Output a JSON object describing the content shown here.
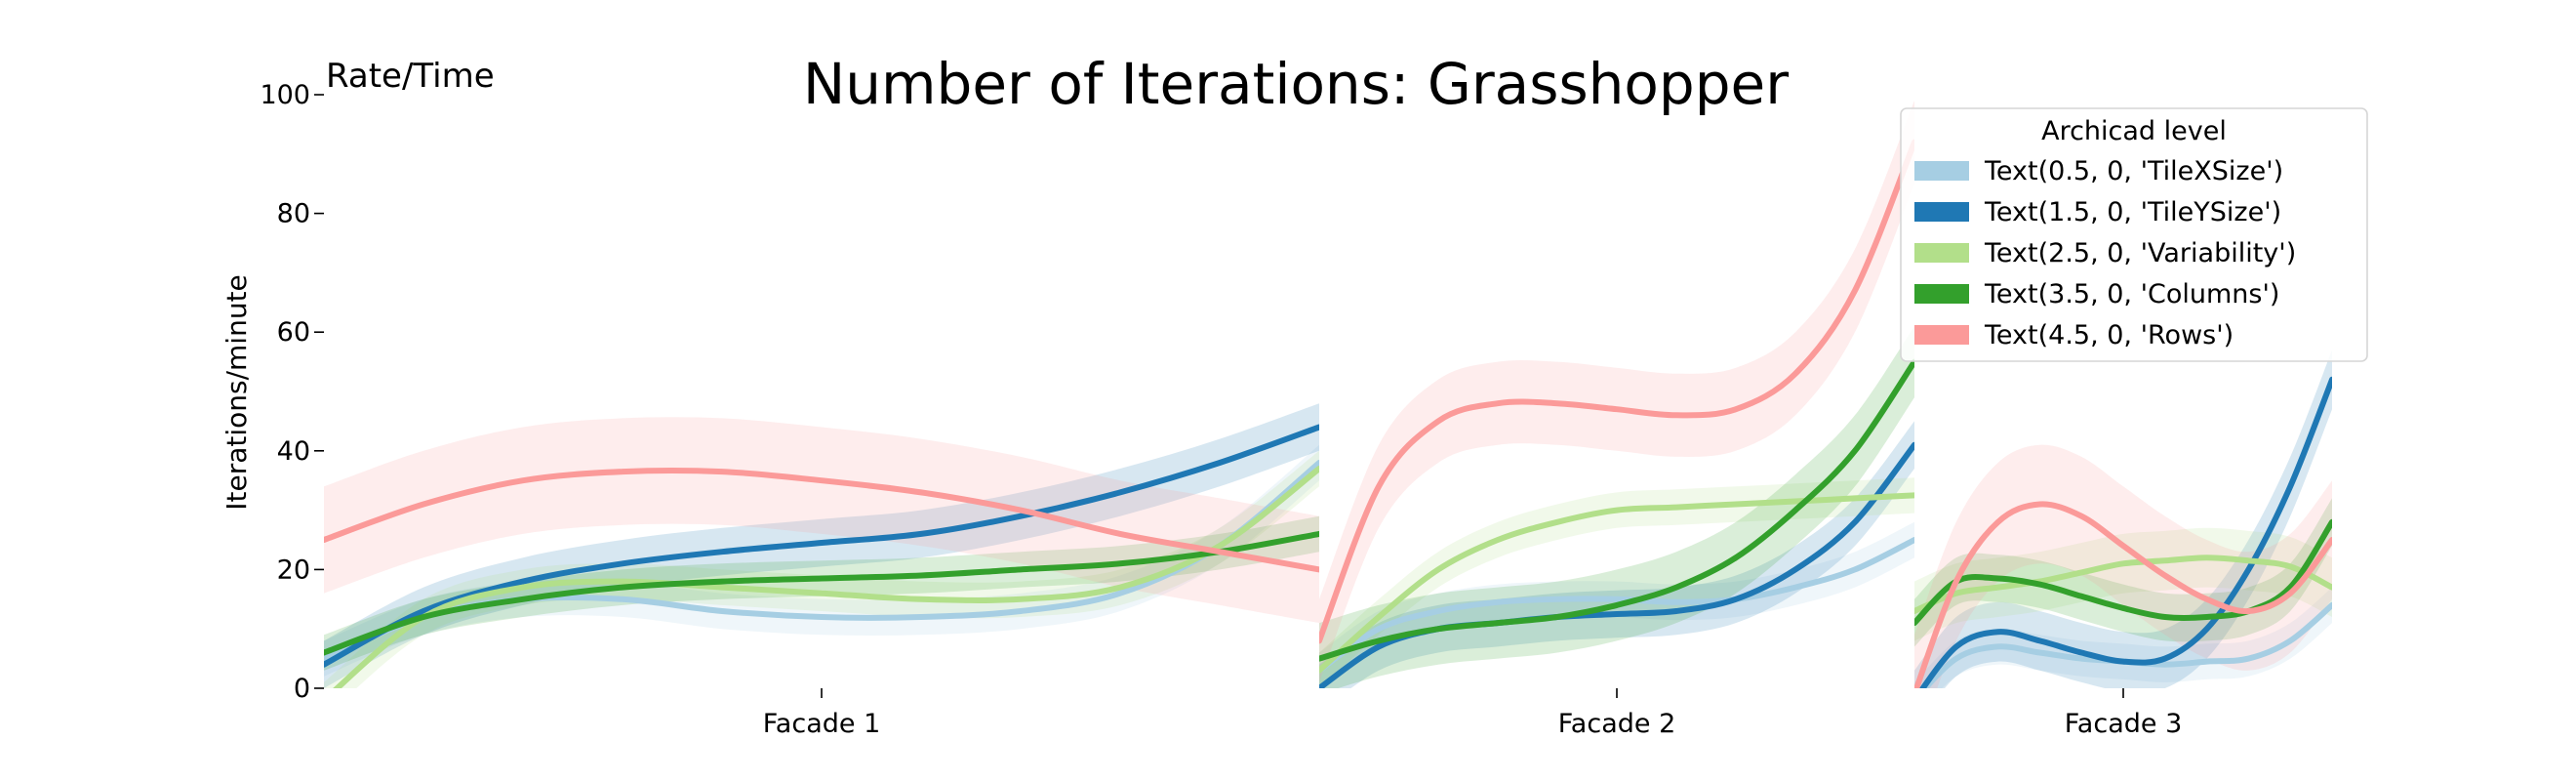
{
  "chart_data": {
    "type": "line",
    "title": "Number of Iterations: Grasshopper",
    "corner_label": "Rate/Time",
    "ylabel": "Iterations/minute",
    "xlabel": "",
    "ylim": [
      0,
      100
    ],
    "yticks": [
      0,
      20,
      40,
      60,
      80,
      100
    ],
    "grid": false,
    "legend": {
      "title": "Archicad level",
      "placement": "top-right"
    },
    "panels": [
      {
        "label": "Facade 1",
        "x": [
          0,
          0.1,
          0.2,
          0.3,
          0.4,
          0.5,
          0.6,
          0.7,
          0.8,
          0.9,
          1.0
        ],
        "series": [
          {
            "name": "Text(0.5, 0, 'TileXSize')",
            "color": "#a6cee3",
            "values": [
              5,
              12,
              15,
              15,
              13,
              12,
              12,
              13,
              16,
              24,
              38
            ],
            "band": 3
          },
          {
            "name": "Text(1.5, 0, 'TileYSize')",
            "color": "#1f78b4",
            "values": [
              4,
              13,
              18,
              21,
              23,
              24.5,
              26,
              29,
              33,
              38,
              44
            ],
            "band": 4
          },
          {
            "name": "Text(2.5, 0, 'Variability')",
            "color": "#b2df8a",
            "values": [
              -2,
              12,
              17,
              18,
              17,
              16,
              15,
              15,
              17,
              24,
              37
            ],
            "band": 3
          },
          {
            "name": "Text(3.5, 0, 'Columns')",
            "color": "#33a02c",
            "values": [
              6,
              12,
              15,
              17,
              18,
              18.5,
              19,
              20,
              21,
              23,
              26
            ],
            "band": 3
          },
          {
            "name": "Text(4.5, 0, 'Rows')",
            "color": "#fb9a99",
            "values": [
              25,
              31,
              35,
              36.5,
              36.5,
              35,
              33,
              30,
              26,
              23,
              20
            ],
            "band": 9
          }
        ]
      },
      {
        "label": "Facade 2",
        "x": [
          0,
          0.1,
          0.2,
          0.3,
          0.4,
          0.5,
          0.6,
          0.7,
          0.8,
          0.9,
          1.0
        ],
        "series": [
          {
            "name": "Text(0.5, 0, 'TileXSize')",
            "color": "#a6cee3",
            "values": [
              3,
              10,
              13,
              14.5,
              15,
              15,
              14.5,
              15,
              17,
              20,
              25
            ],
            "band": 3
          },
          {
            "name": "Text(1.5, 0, 'TileYSize')",
            "color": "#1f78b4",
            "values": [
              0,
              7,
              10,
              11,
              12,
              12.5,
              13,
              15,
              20,
              28,
              41
            ],
            "band": 4
          },
          {
            "name": "Text(2.5, 0, 'Variability')",
            "color": "#b2df8a",
            "values": [
              3,
              12,
              20,
              25,
              28,
              30,
              30.5,
              31,
              31.5,
              32,
              32.5
            ],
            "band": 3
          },
          {
            "name": "Text(3.5, 0, 'Columns')",
            "color": "#33a02c",
            "values": [
              5,
              8,
              10,
              11,
              12,
              14,
              17,
              22,
              30,
              40,
              55
            ],
            "band": 6
          },
          {
            "name": "Text(4.5, 0, 'Rows')",
            "color": "#fb9a99",
            "values": [
              8,
              34,
              45,
              48,
              48,
              47,
              46,
              47,
              53,
              67,
              92
            ],
            "band": 7
          }
        ]
      },
      {
        "label": "Facade 3",
        "x": [
          0,
          0.1,
          0.2,
          0.3,
          0.4,
          0.5,
          0.6,
          0.7,
          0.8,
          0.9,
          1.0
        ],
        "series": [
          {
            "name": "Text(0.5, 0, 'TileXSize')",
            "color": "#a6cee3",
            "values": [
              -2,
              5,
              7,
              6,
              5,
              4.5,
              4,
              4.5,
              5,
              8,
              14
            ],
            "band": 3
          },
          {
            "name": "Text(1.5, 0, 'TileYSize')",
            "color": "#1f78b4",
            "values": [
              -2,
              7,
              9.5,
              8,
              6,
              4.5,
              5,
              10,
              20,
              34,
              52
            ],
            "band": 5
          },
          {
            "name": "Text(2.5, 0, 'Variability')",
            "color": "#b2df8a",
            "values": [
              13,
              16,
              17,
              18,
              19.5,
              21,
              21.5,
              22,
              21.5,
              20.5,
              17
            ],
            "band": 5
          },
          {
            "name": "Text(3.5, 0, 'Columns')",
            "color": "#33a02c",
            "values": [
              11,
              18,
              18.5,
              17.5,
              15.5,
              13.5,
              12,
              12,
              13,
              17,
              28
            ],
            "band": 4
          },
          {
            "name": "Text(4.5, 0, 'Rows')",
            "color": "#fb9a99",
            "values": [
              -1,
              18,
              28,
              31,
              29,
              24,
              19,
              15,
              13,
              16,
              25
            ],
            "band": 10
          }
        ]
      }
    ]
  }
}
